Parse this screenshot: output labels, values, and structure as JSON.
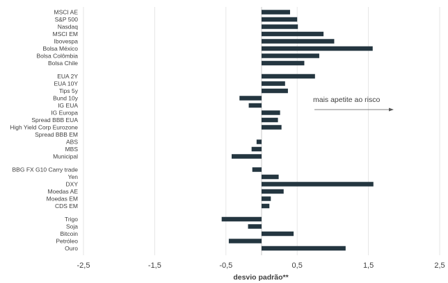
{
  "chart_data": {
    "type": "bar",
    "orientation": "horizontal",
    "xlabel": "desvio padrão**",
    "xlim": [
      -2.5,
      2.5
    ],
    "xticks": [
      -2.5,
      -1.5,
      -0.5,
      0.5,
      1.5,
      2.5
    ],
    "xtick_labels": [
      "-2,5",
      "-1,5",
      "-0,5",
      "0,5",
      "1,5",
      "2,5"
    ],
    "grid": true,
    "bar_color": "#243640",
    "gridline_color": "#e6e6e6",
    "annotation": {
      "text": "mais apetite ao risco",
      "arrow": "right"
    },
    "categories": [
      "MSCI AE",
      "S&P 500",
      "Nasdaq",
      "MSCI EM",
      "Ibovespa",
      "Bolsa México",
      "Bolsa Colômbia",
      "Bolsa Chile",
      "EUA 2Y",
      "EUA 10Y",
      "Tips 5y",
      "Bund 10y",
      "IG EUA",
      "IG Europa",
      "Spread BBB EUA",
      "High Yield Corp Eurozone",
      "Spread BBB EM",
      "ABS",
      "MBS",
      "Municipal",
      "BBG FX G10 Carry trade",
      "Yen",
      "DXY",
      "Moedas AE",
      "Moedas EM",
      "CDS EM",
      "Trigo",
      "Soja",
      "Bitcoin",
      "Petróleo",
      "Ouro"
    ],
    "groups": [
      8,
      12,
      6,
      5
    ],
    "values": [
      0.4,
      0.5,
      0.51,
      0.87,
      1.02,
      1.56,
      0.81,
      0.6,
      0.75,
      0.33,
      0.37,
      -0.31,
      -0.18,
      0.26,
      0.23,
      0.28,
      0.0,
      -0.07,
      -0.14,
      -0.42,
      -0.13,
      0.24,
      1.57,
      0.31,
      0.13,
      0.11,
      -0.56,
      -0.19,
      0.45,
      -0.46,
      1.18
    ]
  }
}
